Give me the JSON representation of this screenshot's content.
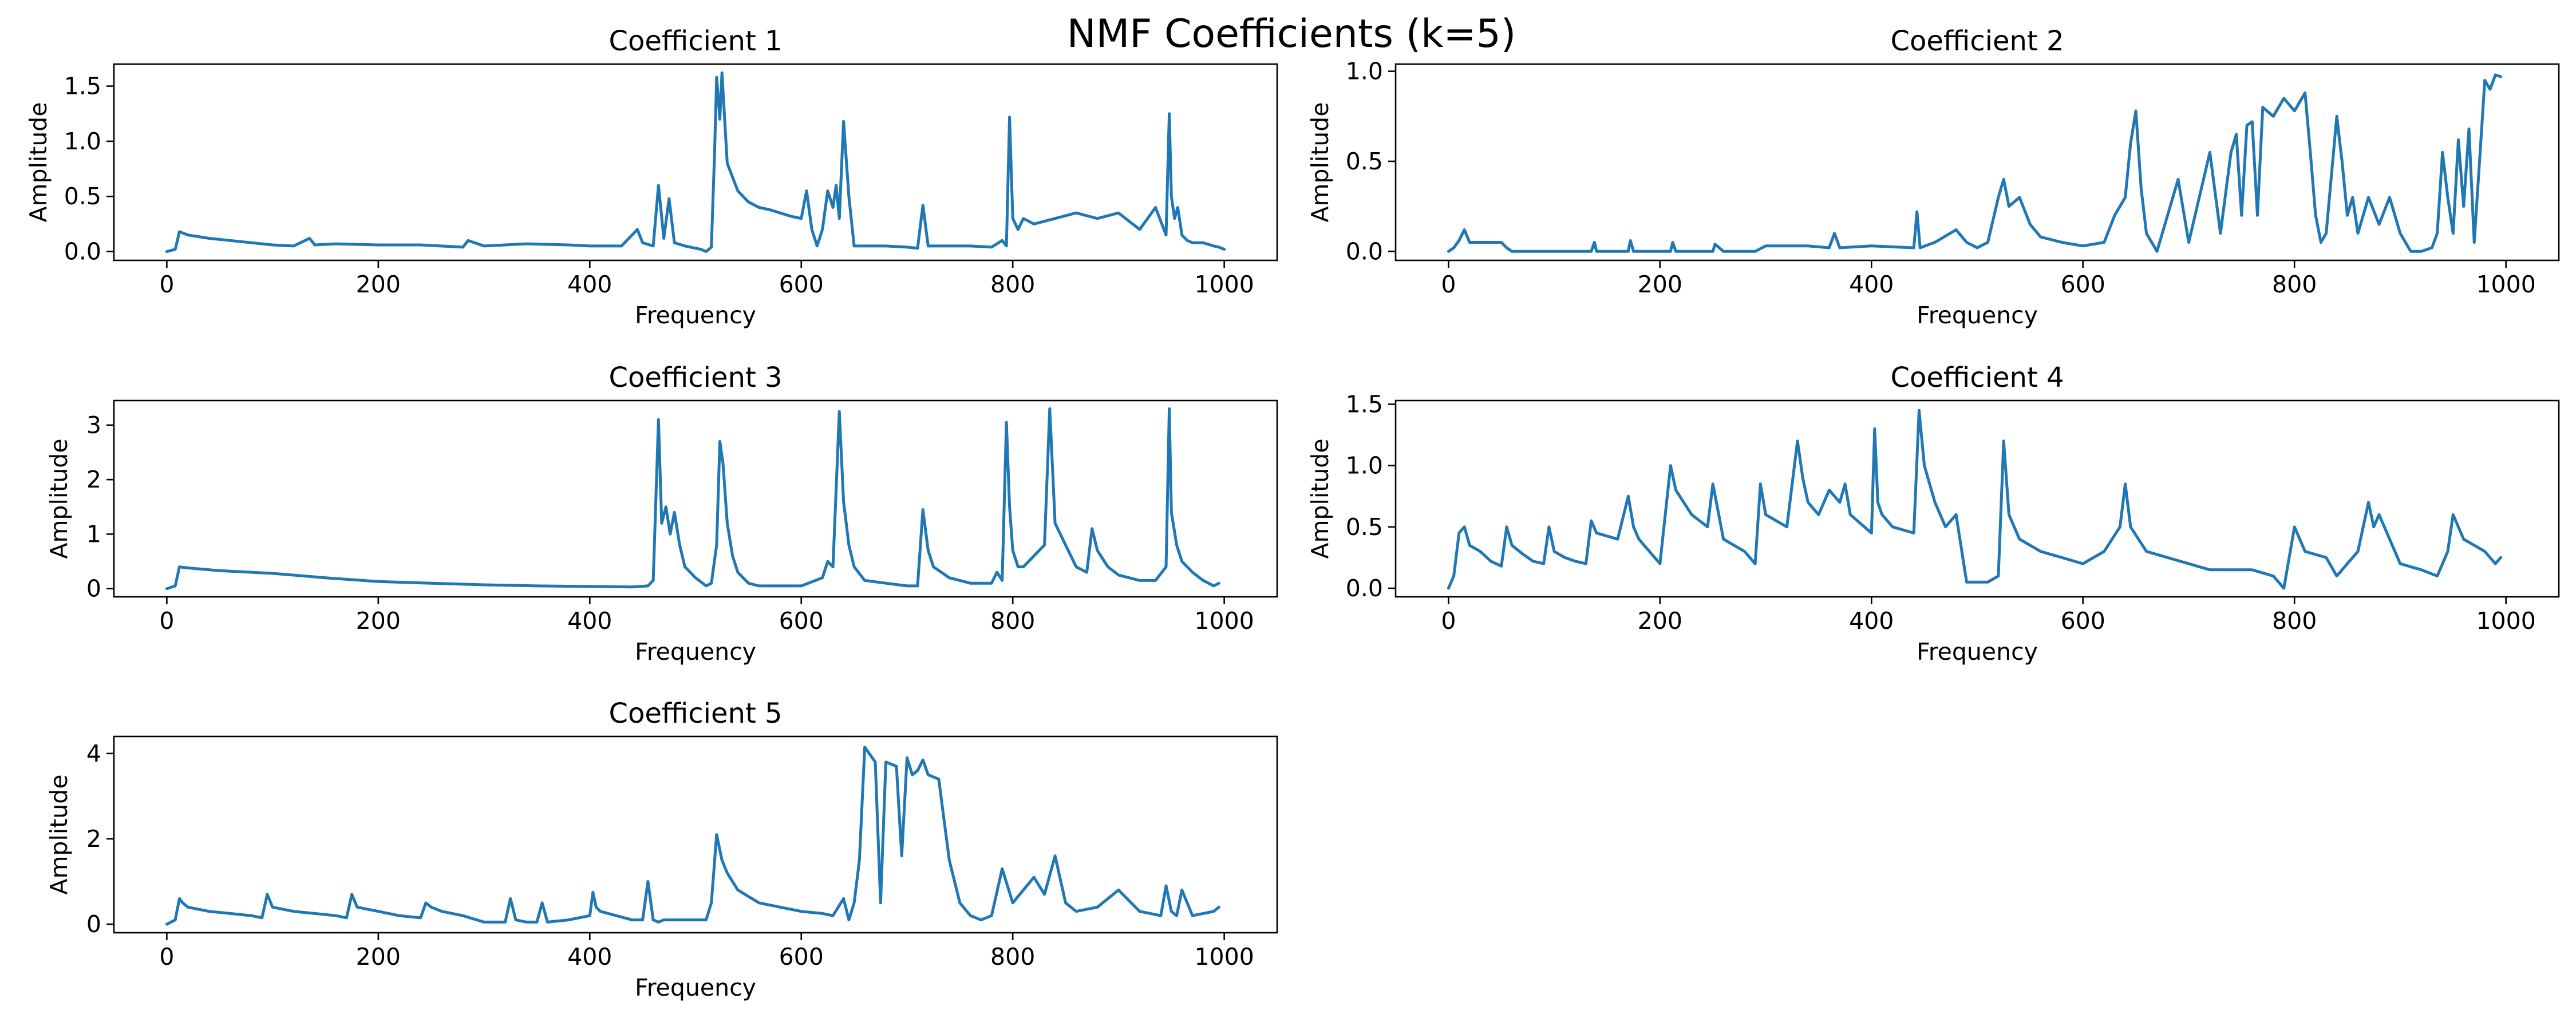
{
  "figure": {
    "suptitle": "NMF Coefficients (k=5)",
    "line_color": "#1f77b4"
  },
  "chart_data": [
    {
      "type": "line",
      "title": "Coefficient 1",
      "xlabel": "Frequency",
      "ylabel": "Amplitude",
      "xlim": [
        -50,
        1050
      ],
      "ylim": [
        -0.08,
        1.7
      ],
      "xticks": [
        "0",
        "200",
        "400",
        "600",
        "800",
        "1000"
      ],
      "yticks": [
        "0.0",
        "0.5",
        "1.0",
        "1.5"
      ],
      "series": [
        {
          "x": [
            0,
            8,
            12,
            20,
            40,
            60,
            80,
            100,
            120,
            135,
            140,
            160,
            200,
            240,
            280,
            285,
            300,
            340,
            380,
            400,
            430,
            445,
            450,
            460,
            465,
            470,
            475,
            480,
            490,
            500,
            505,
            510,
            515,
            518,
            520,
            523,
            525,
            530,
            540,
            550,
            560,
            570,
            580,
            590,
            600,
            605,
            610,
            615,
            620,
            625,
            630,
            633,
            636,
            640,
            645,
            650,
            660,
            680,
            700,
            710,
            715,
            720,
            740,
            760,
            780,
            790,
            794,
            797,
            800,
            805,
            810,
            820,
            840,
            860,
            880,
            900,
            920,
            935,
            945,
            948,
            950,
            953,
            956,
            960,
            965,
            970,
            980,
            990,
            995,
            1000
          ],
          "values": [
            0.0,
            0.02,
            0.18,
            0.15,
            0.12,
            0.1,
            0.08,
            0.06,
            0.05,
            0.12,
            0.06,
            0.07,
            0.06,
            0.06,
            0.04,
            0.1,
            0.05,
            0.07,
            0.06,
            0.05,
            0.05,
            0.2,
            0.08,
            0.05,
            0.6,
            0.12,
            0.48,
            0.08,
            0.05,
            0.03,
            0.02,
            0.0,
            0.04,
            0.9,
            1.58,
            1.2,
            1.62,
            0.8,
            0.55,
            0.45,
            0.4,
            0.38,
            0.35,
            0.32,
            0.3,
            0.55,
            0.2,
            0.05,
            0.2,
            0.55,
            0.4,
            0.6,
            0.3,
            1.18,
            0.5,
            0.05,
            0.05,
            0.05,
            0.04,
            0.03,
            0.42,
            0.05,
            0.05,
            0.05,
            0.04,
            0.1,
            0.05,
            1.22,
            0.3,
            0.2,
            0.3,
            0.25,
            0.3,
            0.35,
            0.3,
            0.35,
            0.2,
            0.4,
            0.15,
            1.25,
            0.5,
            0.3,
            0.4,
            0.15,
            0.1,
            0.08,
            0.08,
            0.05,
            0.04,
            0.02
          ]
        }
      ]
    },
    {
      "type": "line",
      "title": "Coefficient 2",
      "xlabel": "Frequency",
      "ylabel": "Amplitude",
      "xlim": [
        -50,
        1050
      ],
      "ylim": [
        -0.05,
        1.04
      ],
      "xticks": [
        "0",
        "200",
        "400",
        "600",
        "800",
        "1000"
      ],
      "yticks": [
        "0.0",
        "0.5",
        "1.0"
      ],
      "series": [
        {
          "x": [
            0,
            5,
            10,
            15,
            20,
            50,
            55,
            60,
            100,
            135,
            138,
            140,
            170,
            172,
            175,
            210,
            212,
            215,
            250,
            252,
            260,
            290,
            300,
            340,
            360,
            365,
            370,
            400,
            440,
            443,
            446,
            460,
            480,
            490,
            500,
            510,
            520,
            525,
            530,
            540,
            550,
            560,
            580,
            600,
            620,
            630,
            640,
            645,
            650,
            655,
            660,
            665,
            670,
            675,
            680,
            690,
            700,
            710,
            720,
            730,
            740,
            745,
            750,
            755,
            760,
            765,
            770,
            780,
            790,
            800,
            810,
            815,
            820,
            825,
            830,
            840,
            845,
            850,
            855,
            860,
            870,
            880,
            890,
            900,
            910,
            920,
            930,
            935,
            940,
            945,
            950,
            955,
            960,
            965,
            970,
            975,
            980,
            985,
            990,
            995
          ],
          "values": [
            0.0,
            0.02,
            0.06,
            0.12,
            0.05,
            0.05,
            0.02,
            0.0,
            0.0,
            0.0,
            0.05,
            0.0,
            0.0,
            0.06,
            0.0,
            0.0,
            0.05,
            0.0,
            0.0,
            0.04,
            0.0,
            0.0,
            0.03,
            0.03,
            0.02,
            0.1,
            0.02,
            0.03,
            0.02,
            0.22,
            0.02,
            0.05,
            0.12,
            0.05,
            0.02,
            0.05,
            0.3,
            0.4,
            0.25,
            0.3,
            0.15,
            0.08,
            0.05,
            0.03,
            0.05,
            0.2,
            0.3,
            0.6,
            0.78,
            0.35,
            0.1,
            0.05,
            0.0,
            0.1,
            0.2,
            0.4,
            0.05,
            0.3,
            0.55,
            0.1,
            0.55,
            0.65,
            0.2,
            0.7,
            0.72,
            0.2,
            0.8,
            0.75,
            0.85,
            0.78,
            0.88,
            0.55,
            0.2,
            0.05,
            0.1,
            0.75,
            0.5,
            0.2,
            0.3,
            0.1,
            0.3,
            0.15,
            0.3,
            0.1,
            0.0,
            0.0,
            0.02,
            0.1,
            0.55,
            0.3,
            0.1,
            0.62,
            0.25,
            0.68,
            0.05,
            0.5,
            0.95,
            0.9,
            0.98,
            0.97
          ]
        }
      ]
    },
    {
      "type": "line",
      "title": "Coefficient 3",
      "xlabel": "Frequency",
      "ylabel": "Amplitude",
      "xlim": [
        -50,
        1050
      ],
      "ylim": [
        -0.15,
        3.45
      ],
      "xticks": [
        "0",
        "200",
        "400",
        "600",
        "800",
        "1000"
      ],
      "yticks": [
        "0",
        "1",
        "2",
        "3"
      ],
      "series": [
        {
          "x": [
            0,
            8,
            12,
            20,
            50,
            100,
            150,
            200,
            250,
            300,
            350,
            400,
            440,
            455,
            460,
            465,
            468,
            472,
            476,
            480,
            485,
            490,
            500,
            510,
            515,
            520,
            523,
            526,
            530,
            535,
            540,
            550,
            560,
            600,
            620,
            625,
            630,
            636,
            640,
            645,
            650,
            660,
            680,
            700,
            710,
            715,
            720,
            725,
            740,
            760,
            780,
            785,
            790,
            794,
            797,
            800,
            805,
            810,
            820,
            830,
            835,
            840,
            850,
            860,
            870,
            875,
            880,
            890,
            900,
            920,
            935,
            945,
            948,
            950,
            955,
            960,
            970,
            980,
            990,
            995
          ],
          "values": [
            0.0,
            0.05,
            0.4,
            0.38,
            0.33,
            0.28,
            0.2,
            0.13,
            0.1,
            0.07,
            0.05,
            0.04,
            0.03,
            0.05,
            0.15,
            3.1,
            1.2,
            1.5,
            1.0,
            1.4,
            0.8,
            0.4,
            0.2,
            0.05,
            0.1,
            0.8,
            2.7,
            2.3,
            1.2,
            0.6,
            0.3,
            0.1,
            0.05,
            0.05,
            0.2,
            0.5,
            0.4,
            3.25,
            1.6,
            0.8,
            0.4,
            0.15,
            0.1,
            0.05,
            0.05,
            1.45,
            0.7,
            0.4,
            0.2,
            0.1,
            0.1,
            0.3,
            0.15,
            3.05,
            1.5,
            0.7,
            0.4,
            0.4,
            0.6,
            0.8,
            3.3,
            1.2,
            0.8,
            0.4,
            0.3,
            1.1,
            0.7,
            0.4,
            0.25,
            0.15,
            0.15,
            0.4,
            3.3,
            1.4,
            0.8,
            0.5,
            0.3,
            0.15,
            0.05,
            0.1
          ]
        }
      ]
    },
    {
      "type": "line",
      "title": "Coefficient 4",
      "xlabel": "Frequency",
      "ylabel": "Amplitude",
      "xlim": [
        -50,
        1050
      ],
      "ylim": [
        -0.07,
        1.53
      ],
      "xticks": [
        "0",
        "200",
        "400",
        "600",
        "800",
        "1000"
      ],
      "yticks": [
        "0.0",
        "0.5",
        "1.0",
        "1.5"
      ],
      "series": [
        {
          "x": [
            0,
            5,
            10,
            15,
            20,
            30,
            40,
            50,
            55,
            60,
            70,
            80,
            90,
            95,
            100,
            110,
            120,
            130,
            135,
            140,
            160,
            170,
            175,
            180,
            200,
            210,
            215,
            230,
            245,
            250,
            260,
            280,
            290,
            295,
            300,
            320,
            330,
            335,
            340,
            350,
            360,
            370,
            375,
            380,
            400,
            403,
            406,
            410,
            420,
            440,
            445,
            450,
            460,
            470,
            480,
            490,
            500,
            510,
            520,
            525,
            530,
            540,
            560,
            580,
            600,
            620,
            635,
            640,
            645,
            660,
            680,
            700,
            720,
            740,
            760,
            780,
            790,
            800,
            810,
            830,
            840,
            850,
            860,
            870,
            875,
            880,
            900,
            920,
            935,
            945,
            950,
            955,
            960,
            980,
            990,
            995
          ],
          "values": [
            0.0,
            0.1,
            0.45,
            0.5,
            0.35,
            0.3,
            0.22,
            0.18,
            0.5,
            0.35,
            0.28,
            0.22,
            0.2,
            0.5,
            0.3,
            0.25,
            0.22,
            0.2,
            0.55,
            0.45,
            0.4,
            0.75,
            0.5,
            0.4,
            0.2,
            1.0,
            0.8,
            0.6,
            0.5,
            0.85,
            0.4,
            0.3,
            0.2,
            0.85,
            0.6,
            0.5,
            1.2,
            0.9,
            0.7,
            0.6,
            0.8,
            0.7,
            0.85,
            0.6,
            0.45,
            1.3,
            0.7,
            0.6,
            0.5,
            0.45,
            1.45,
            1.0,
            0.7,
            0.5,
            0.6,
            0.05,
            0.05,
            0.05,
            0.1,
            1.2,
            0.6,
            0.4,
            0.3,
            0.25,
            0.2,
            0.3,
            0.5,
            0.85,
            0.5,
            0.3,
            0.25,
            0.2,
            0.15,
            0.15,
            0.15,
            0.1,
            0.0,
            0.5,
            0.3,
            0.25,
            0.1,
            0.2,
            0.3,
            0.7,
            0.5,
            0.6,
            0.2,
            0.15,
            0.1,
            0.3,
            0.6,
            0.5,
            0.4,
            0.3,
            0.2,
            0.25
          ]
        }
      ]
    },
    {
      "type": "line",
      "title": "Coefficient 5",
      "xlabel": "Frequency",
      "ylabel": "Amplitude",
      "xlim": [
        -50,
        1050
      ],
      "ylim": [
        -0.2,
        4.4
      ],
      "xticks": [
        "0",
        "200",
        "400",
        "600",
        "800",
        "1000"
      ],
      "yticks": [
        "0",
        "2",
        "4"
      ],
      "series": [
        {
          "x": [
            0,
            8,
            12,
            15,
            20,
            40,
            60,
            80,
            90,
            95,
            100,
            120,
            140,
            160,
            170,
            175,
            180,
            200,
            220,
            240,
            245,
            250,
            260,
            280,
            300,
            320,
            325,
            330,
            340,
            350,
            355,
            360,
            380,
            400,
            403,
            406,
            410,
            440,
            450,
            455,
            460,
            465,
            470,
            510,
            515,
            520,
            525,
            530,
            540,
            560,
            580,
            600,
            620,
            630,
            640,
            645,
            650,
            655,
            660,
            670,
            675,
            680,
            690,
            695,
            700,
            705,
            710,
            715,
            720,
            730,
            740,
            750,
            760,
            770,
            780,
            790,
            800,
            810,
            820,
            830,
            840,
            850,
            860,
            880,
            900,
            920,
            940,
            945,
            950,
            955,
            960,
            970,
            990,
            995
          ],
          "values": [
            0.0,
            0.1,
            0.6,
            0.5,
            0.4,
            0.3,
            0.25,
            0.2,
            0.15,
            0.7,
            0.4,
            0.3,
            0.25,
            0.2,
            0.15,
            0.7,
            0.4,
            0.3,
            0.2,
            0.15,
            0.5,
            0.4,
            0.3,
            0.2,
            0.05,
            0.05,
            0.6,
            0.1,
            0.05,
            0.05,
            0.5,
            0.05,
            0.1,
            0.2,
            0.75,
            0.4,
            0.3,
            0.1,
            0.1,
            1.0,
            0.1,
            0.05,
            0.1,
            0.1,
            0.5,
            2.1,
            1.5,
            1.2,
            0.8,
            0.5,
            0.4,
            0.3,
            0.25,
            0.2,
            0.6,
            0.1,
            0.5,
            1.5,
            4.15,
            3.8,
            0.5,
            3.8,
            3.7,
            1.6,
            3.9,
            3.5,
            3.6,
            3.85,
            3.5,
            3.4,
            1.5,
            0.5,
            0.2,
            0.1,
            0.2,
            1.3,
            0.5,
            0.8,
            1.1,
            0.7,
            1.6,
            0.5,
            0.3,
            0.4,
            0.8,
            0.3,
            0.2,
            0.9,
            0.3,
            0.2,
            0.8,
            0.2,
            0.3,
            0.4
          ]
        }
      ]
    }
  ]
}
